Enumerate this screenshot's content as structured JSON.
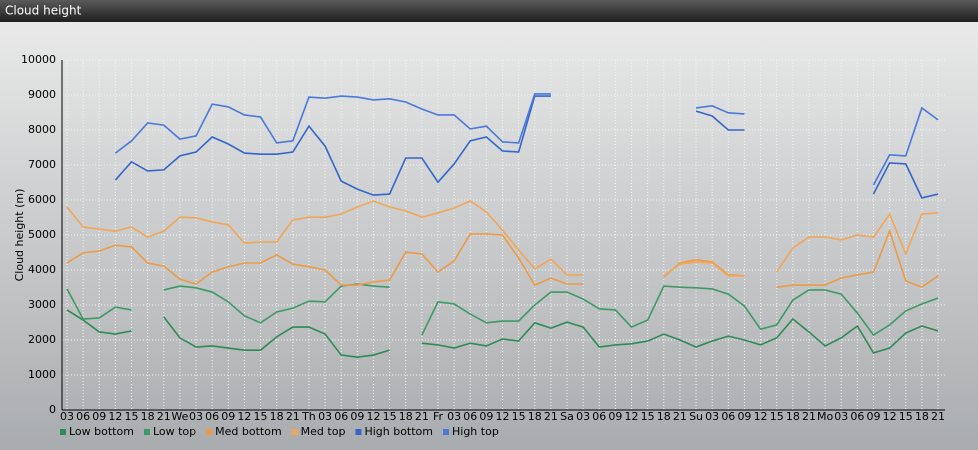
{
  "chart_data": {
    "type": "line",
    "title": "Cloud height",
    "y_label": "Cloud height (m)",
    "categories": [
      "03",
      "06",
      "09",
      "12",
      "15",
      "18",
      "21",
      "We",
      "03",
      "06",
      "09",
      "12",
      "15",
      "18",
      "21",
      "Th",
      "03",
      "06",
      "09",
      "12",
      "15",
      "18",
      "21",
      "Fr",
      "03",
      "06",
      "09",
      "12",
      "15",
      "18",
      "21",
      "Sa",
      "03",
      "06",
      "09",
      "12",
      "15",
      "18",
      "21",
      "Su",
      "03",
      "06",
      "09",
      "12",
      "15",
      "18",
      "21",
      "Mo",
      "03",
      "06",
      "09",
      "12",
      "15",
      "18",
      "21"
    ],
    "ylim": [
      0,
      10000
    ],
    "yticks": [
      0,
      1000,
      2000,
      3000,
      4000,
      5000,
      6000,
      7000,
      8000,
      9000,
      10000
    ],
    "grid": true,
    "legend": "bottom-left",
    "series": [
      {
        "name": "Low bottom",
        "color": "#2e8b57",
        "values": [
          2860,
          2570,
          2230,
          2170,
          2260,
          null,
          2660,
          2060,
          1800,
          1830,
          1770,
          1710,
          1710,
          2090,
          2370,
          2370,
          2170,
          1570,
          1510,
          1570,
          1710,
          null,
          1910,
          1860,
          1770,
          1910,
          1830,
          2030,
          1970,
          2490,
          2340,
          2510,
          2370,
          1800,
          1860,
          1890,
          1970,
          2170,
          2000,
          1800,
          1970,
          2110,
          2000,
          1860,
          2060,
          2600,
          2230,
          1830,
          2060,
          2400,
          1630,
          1770,
          2200,
          2400,
          2260
        ]
      },
      {
        "name": "Low top",
        "color": "#3c9a66",
        "values": [
          3460,
          2600,
          2630,
          2940,
          2860,
          null,
          3430,
          3540,
          3490,
          3370,
          3090,
          2690,
          2490,
          2800,
          2910,
          3110,
          3090,
          3540,
          3600,
          3540,
          3510,
          null,
          2140,
          3090,
          3030,
          2740,
          2490,
          2540,
          2540,
          3000,
          3370,
          3370,
          3170,
          2890,
          2860,
          2370,
          2570,
          3540,
          3510,
          3490,
          3460,
          3310,
          2970,
          2310,
          2430,
          3140,
          3430,
          3430,
          3310,
          2770,
          2140,
          2430,
          2830,
          3030,
          3200
        ]
      },
      {
        "name": "Med bottom",
        "color": "#ee9a45",
        "values": [
          4200,
          4490,
          4540,
          4710,
          4660,
          4200,
          4110,
          3740,
          3600,
          3940,
          4090,
          4200,
          4200,
          4430,
          4170,
          4090,
          4000,
          3570,
          3570,
          3660,
          3710,
          4510,
          4460,
          3940,
          4260,
          5030,
          5030,
          5000,
          4340,
          3570,
          3770,
          3600,
          3600,
          null,
          null,
          null,
          null,
          3800,
          4200,
          4290,
          4230,
          3860,
          3830,
          null,
          3510,
          3570,
          3570,
          3570,
          3770,
          3860,
          3940,
          5110,
          3690,
          3510,
          3830
        ]
      },
      {
        "name": "Med top",
        "color": "#f2a657",
        "values": [
          5800,
          5230,
          5170,
          5110,
          5230,
          4940,
          5110,
          5510,
          5490,
          5370,
          5290,
          4770,
          4800,
          4800,
          5430,
          5510,
          5510,
          5600,
          5800,
          5970,
          5800,
          5690,
          5510,
          5630,
          5770,
          5970,
          5660,
          5140,
          4570,
          4030,
          4310,
          3860,
          3860,
          null,
          null,
          null,
          null,
          3830,
          4170,
          4230,
          4200,
          3830,
          3830,
          null,
          3940,
          4630,
          4940,
          4940,
          4860,
          5000,
          4940,
          5600,
          4460,
          5600,
          5630
        ]
      },
      {
        "name": "High bottom",
        "color": "#3366cc",
        "values": [
          null,
          null,
          null,
          6570,
          7090,
          6830,
          6860,
          7260,
          7370,
          7800,
          7600,
          7340,
          7310,
          7310,
          7370,
          8110,
          7540,
          6540,
          6310,
          6140,
          6170,
          7200,
          7200,
          6510,
          7030,
          7690,
          7800,
          7400,
          7370,
          8970,
          8970,
          null,
          null,
          null,
          null,
          null,
          null,
          null,
          null,
          8540,
          8400,
          8000,
          8000,
          null,
          null,
          null,
          null,
          null,
          null,
          null,
          6170,
          7060,
          7030,
          6060,
          6170
        ]
      },
      {
        "name": "High top",
        "color": "#4a78dc",
        "values": [
          null,
          null,
          null,
          7340,
          7690,
          8200,
          8140,
          7740,
          7830,
          8740,
          8660,
          8430,
          8370,
          7630,
          7690,
          8940,
          8910,
          8970,
          8940,
          8860,
          8890,
          8800,
          8600,
          8430,
          8430,
          8030,
          8110,
          7660,
          7630,
          9030,
          9030,
          null,
          null,
          null,
          null,
          null,
          null,
          null,
          null,
          8630,
          8690,
          8490,
          8460,
          null,
          null,
          null,
          null,
          null,
          null,
          null,
          6430,
          7290,
          7260,
          8630,
          8290
        ]
      }
    ]
  }
}
